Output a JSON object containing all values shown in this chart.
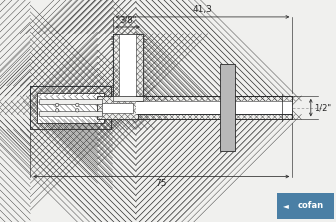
{
  "bg_color": "#f0f0ee",
  "line_color": "#2a2a2a",
  "handle_fill": "#b8b8b8",
  "cofan_bg": "#4a7fa5",
  "cofan_text": "#ffffff",
  "dim_41_3": "41,3",
  "dim_38": "3/8\"",
  "dim_75": "75",
  "dim_12": "1/2\"",
  "cofan_label": "cofan"
}
